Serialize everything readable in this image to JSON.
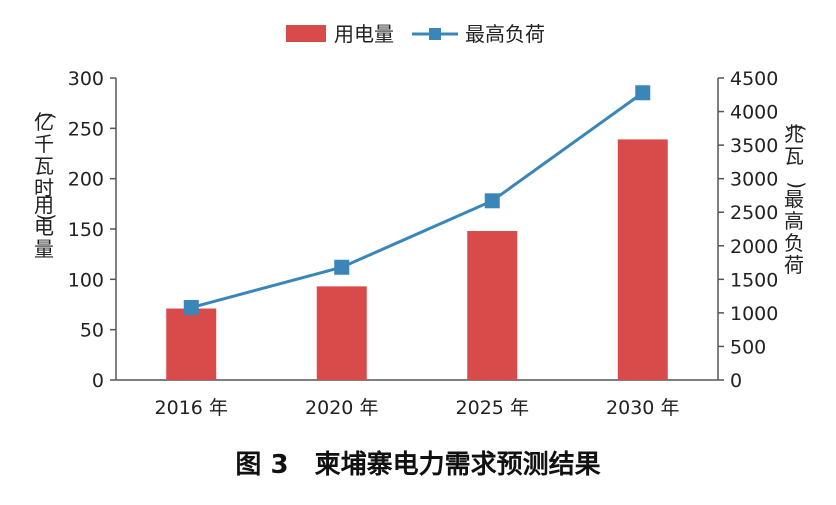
{
  "caption": "图 3　柬埔寨电力需求预测结果",
  "chart_data": {
    "type": "bar",
    "categories": [
      "2016 年",
      "2020 年",
      "2025 年",
      "2030 年"
    ],
    "series": [
      {
        "name": "用电量",
        "type": "bar",
        "axis": "left",
        "color": "#d94a4a",
        "values": [
          71,
          93,
          148,
          239
        ]
      },
      {
        "name": "最高负荷",
        "type": "line",
        "axis": "right",
        "color": "#3a86b8",
        "marker": "square",
        "values": [
          1080,
          1680,
          2670,
          4280
        ]
      }
    ],
    "y_left": {
      "label_parts": [
        "(亿千瓦时)",
        "用电量"
      ],
      "ylim": [
        0,
        300
      ],
      "ticks": [
        0,
        50,
        100,
        150,
        200,
        250,
        300
      ]
    },
    "y_right": {
      "label_parts": [
        "(兆瓦)",
        "最高负荷"
      ],
      "ylim": [
        0,
        4500
      ],
      "ticks": [
        0,
        500,
        1000,
        1500,
        2000,
        2500,
        3000,
        3500,
        4000,
        4500
      ]
    },
    "legend_position": "top-center",
    "grid": false
  }
}
